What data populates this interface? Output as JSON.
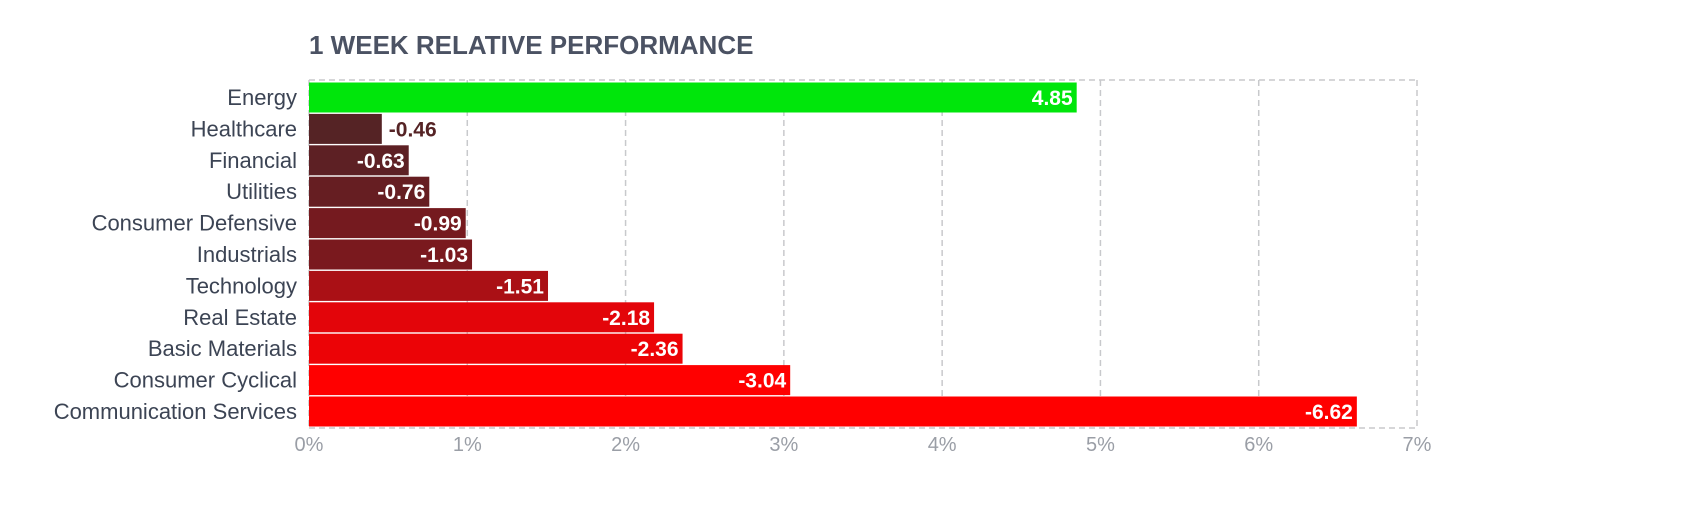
{
  "chart_data": {
    "type": "bar",
    "orientation": "horizontal",
    "title": "1 WEEK RELATIVE PERFORMANCE",
    "xlabel": "",
    "ylabel": "",
    "categories": [
      "Energy",
      "Healthcare",
      "Financial",
      "Utilities",
      "Consumer Defensive",
      "Industrials",
      "Technology",
      "Real Estate",
      "Basic Materials",
      "Consumer Cyclical",
      "Communication Services"
    ],
    "values": [
      4.85,
      -0.46,
      -0.63,
      -0.76,
      -0.99,
      -1.03,
      -1.51,
      -2.18,
      -2.36,
      -3.04,
      -6.62
    ],
    "value_labels": [
      "4.85",
      "-0.46",
      "-0.63",
      "-0.76",
      "-0.99",
      "-1.03",
      "-1.51",
      "-2.18",
      "-2.36",
      "-3.04",
      "-6.62"
    ],
    "bar_length": "absolute value",
    "xlim": [
      0,
      7
    ],
    "x_ticks": [
      0,
      1,
      2,
      3,
      4,
      5,
      6,
      7
    ],
    "x_tick_labels": [
      "0%",
      "1%",
      "2%",
      "3%",
      "4%",
      "5%",
      "6%",
      "7%"
    ],
    "grid": true,
    "grid_style": "dashed vertical",
    "legend": "none",
    "colors": {
      "positive": "#00e60b",
      "negative_scale": [
        "#552325",
        "#5d2024",
        "#661e22",
        "#751a1f",
        "#7a191e",
        "#aa1015",
        "#e3050a",
        "#ec0306",
        "#ff0000",
        "#ff0000"
      ],
      "title": "#4b5263",
      "category_text": "#3c4454",
      "tick_text": "#9a9ea6",
      "grid": "#c8c9cc",
      "label_inside": "#ffffff",
      "label_outside": "#552325"
    }
  }
}
